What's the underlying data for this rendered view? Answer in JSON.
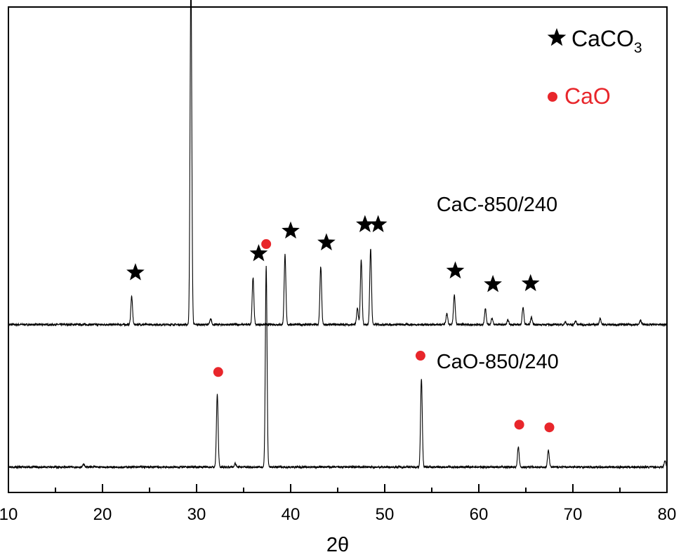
{
  "chart_data": {
    "type": "line",
    "xlabel": "2θ",
    "xlim": [
      10,
      80
    ],
    "x_major_ticks": [
      10,
      20,
      30,
      40,
      50,
      60,
      70,
      80
    ],
    "x_minor_ticks": [
      15,
      25,
      35,
      45,
      55,
      65,
      75
    ],
    "y_ticks_shown": false,
    "grid": false,
    "legend_position": "top-right",
    "legend": [
      {
        "marker": "star",
        "label": "CaCO",
        "subscript": "3",
        "color": "#000000"
      },
      {
        "marker": "circle",
        "label": "CaO",
        "color": "#e8262b"
      }
    ],
    "series": [
      {
        "name": "CaC-850/240",
        "color": "#000000",
        "baseline": 1.85,
        "peaks": [
          {
            "x": 23.1,
            "h": 0.31
          },
          {
            "x": 29.4,
            "h": 3.88
          },
          {
            "x": 31.5,
            "h": 0.06
          },
          {
            "x": 36.0,
            "h": 0.52
          },
          {
            "x": 39.4,
            "h": 0.77
          },
          {
            "x": 43.2,
            "h": 0.64
          },
          {
            "x": 47.1,
            "h": 0.18
          },
          {
            "x": 47.5,
            "h": 0.71
          },
          {
            "x": 48.5,
            "h": 0.84
          },
          {
            "x": 56.6,
            "h": 0.12
          },
          {
            "x": 57.4,
            "h": 0.33
          },
          {
            "x": 60.7,
            "h": 0.18
          },
          {
            "x": 61.4,
            "h": 0.07
          },
          {
            "x": 63.1,
            "h": 0.05
          },
          {
            "x": 64.7,
            "h": 0.19
          },
          {
            "x": 65.6,
            "h": 0.08
          },
          {
            "x": 69.2,
            "h": 0.03
          },
          {
            "x": 70.3,
            "h": 0.04
          },
          {
            "x": 72.9,
            "h": 0.07
          },
          {
            "x": 77.2,
            "h": 0.05
          }
        ],
        "markers": {
          "symbol": "star",
          "x": [
            23.5,
            29.8,
            36.6,
            40.0,
            43.8,
            47.9,
            49.3,
            57.5,
            61.5,
            65.5
          ]
        }
      },
      {
        "name": "CaO-850/240",
        "color": "#000000",
        "baseline": 0.28,
        "peaks": [
          {
            "x": 18.0,
            "h": 0.03
          },
          {
            "x": 32.2,
            "h": 0.8
          },
          {
            "x": 34.1,
            "h": 0.04
          },
          {
            "x": 37.4,
            "h": 2.21
          },
          {
            "x": 53.9,
            "h": 0.98
          },
          {
            "x": 64.2,
            "h": 0.22
          },
          {
            "x": 67.4,
            "h": 0.19
          },
          {
            "x": 79.8,
            "h": 0.07
          }
        ],
        "markers": {
          "symbol": "circle",
          "x": [
            32.3,
            37.4,
            53.8,
            64.3,
            67.5
          ]
        }
      }
    ],
    "annotations": [
      {
        "text": "CaC-850/240",
        "x": 55.5,
        "y": 3.1
      },
      {
        "text": "CaO-850/240",
        "x": 55.5,
        "y": 1.37
      }
    ]
  }
}
